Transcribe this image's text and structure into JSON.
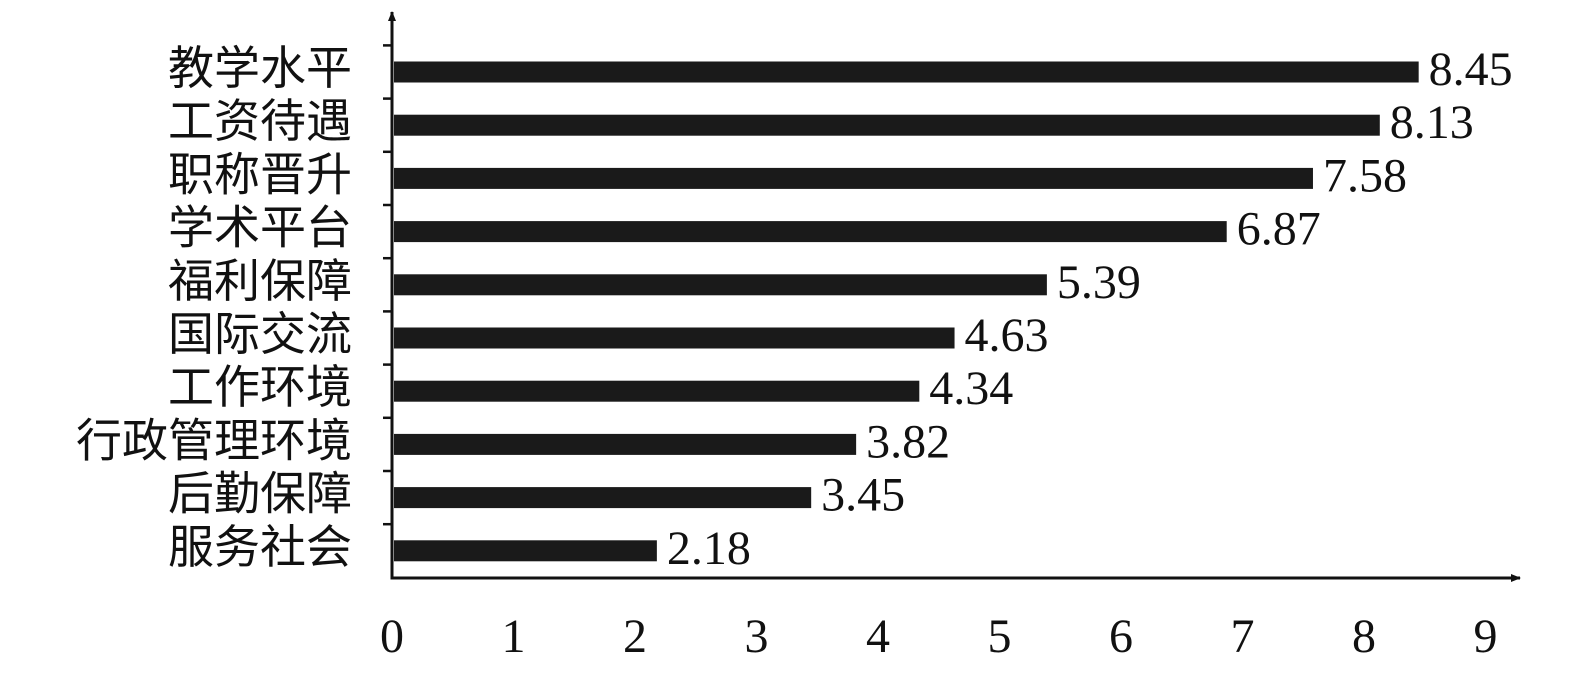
{
  "chart_data": {
    "type": "bar",
    "orientation": "horizontal",
    "categories": [
      "教学水平",
      "工资待遇",
      "职称晋升",
      "学术平台",
      "福利保障",
      "国际交流",
      "工作环境",
      "行政管理环境",
      "后勤保障",
      "服务社会"
    ],
    "values": [
      8.45,
      8.13,
      7.58,
      6.87,
      5.39,
      4.63,
      4.34,
      3.82,
      3.45,
      2.18
    ],
    "value_labels": [
      "8.45",
      "8.13",
      "7.58",
      "6.87",
      "5.39",
      "4.63",
      "4.34",
      "3.82",
      "3.45",
      "2.18"
    ],
    "title": "",
    "xlabel": "",
    "ylabel": "",
    "xlim": [
      0,
      9
    ],
    "x_ticks": [
      0,
      1,
      2,
      3,
      4,
      5,
      6,
      7,
      8,
      9
    ],
    "x_tick_labels": [
      "0",
      "1",
      "2",
      "3",
      "4",
      "5",
      "6",
      "7",
      "8",
      "9"
    ],
    "grid": false,
    "legend": "none",
    "bar_color": "#1a1a1a"
  }
}
